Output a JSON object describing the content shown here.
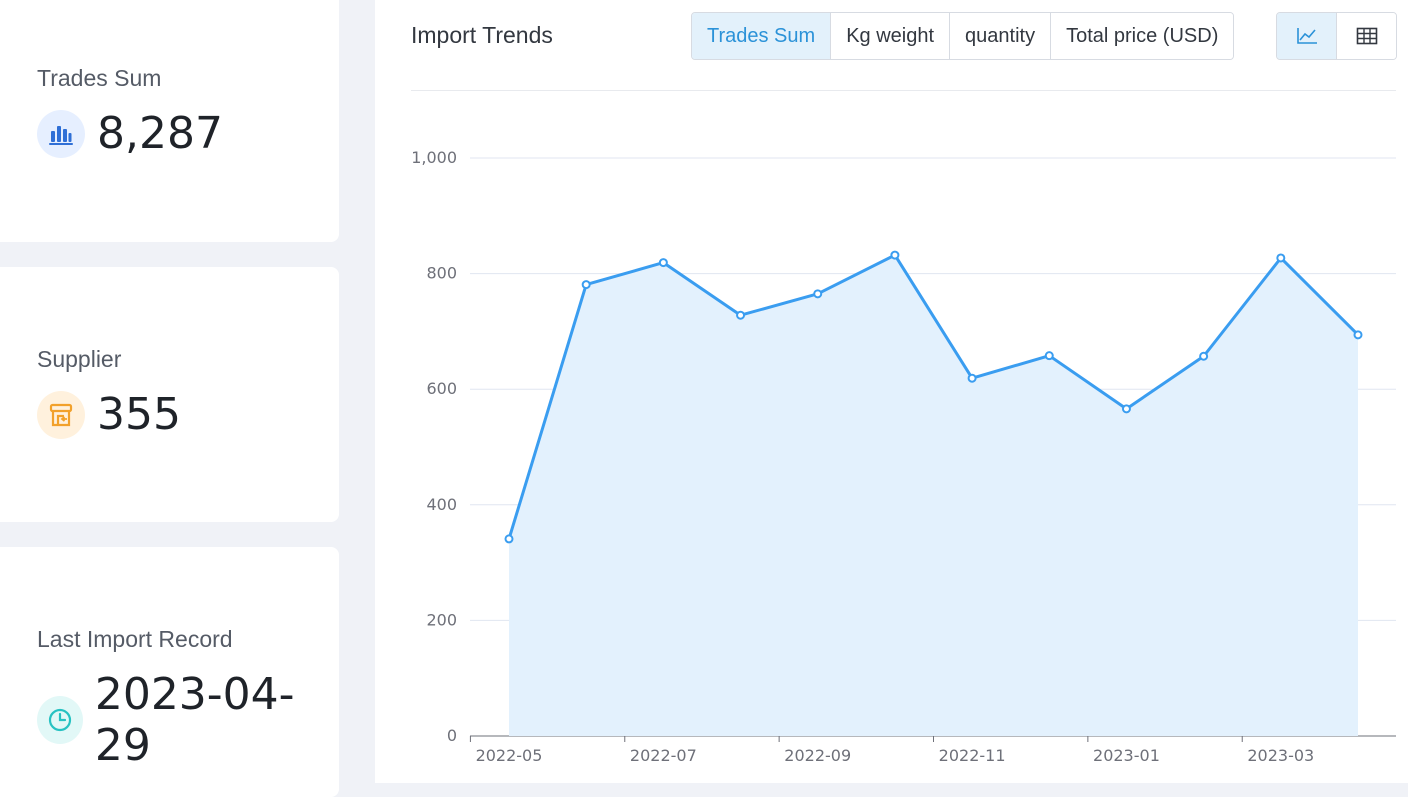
{
  "cards": {
    "trades": {
      "label": "Trades Sum",
      "value": "8,287",
      "icon": "bar-chart-icon",
      "icon_color": "#2f6fd6",
      "icon_bg": "#e6efff"
    },
    "supplier": {
      "label": "Supplier",
      "value": "355",
      "icon": "store-icon",
      "icon_color": "#f2a12b",
      "icon_bg": "#fff1dd"
    },
    "last_import": {
      "label": "Last Import Record",
      "value": "2023-04-29",
      "icon": "clock-icon",
      "icon_color": "#27c2c2",
      "icon_bg": "#e2f8f7"
    }
  },
  "panel": {
    "title": "Import Trends",
    "metric_tabs": [
      "Trades Sum",
      "Kg weight",
      "quantity",
      "Total price (USD)"
    ],
    "active_tab": "Trades Sum",
    "view_buttons": [
      "line-chart-icon",
      "table-icon"
    ],
    "active_view": "line-chart-icon"
  },
  "colors": {
    "accent": "#2b92d8",
    "line": "#3a9df0",
    "area": "#e3f1fd"
  },
  "chart_data": {
    "type": "area",
    "x": [
      "2022-05",
      "2022-06",
      "2022-07",
      "2022-08",
      "2022-09",
      "2022-10",
      "2022-11",
      "2022-12",
      "2023-01",
      "2023-02",
      "2023-03",
      "2023-04"
    ],
    "xtick_labels": [
      "2022-05",
      "2022-07",
      "2022-09",
      "2022-11",
      "2023-01",
      "2023-03"
    ],
    "series": [
      {
        "values": [
          341,
          781,
          819,
          728,
          765,
          832,
          619,
          658,
          566,
          657,
          827,
          694
        ]
      }
    ],
    "ylim": [
      0,
      1000
    ],
    "ytick_labels": [
      "0",
      "200",
      "400",
      "600",
      "800",
      "1,000"
    ],
    "grid": true,
    "title": "",
    "xlabel": "",
    "ylabel": ""
  }
}
